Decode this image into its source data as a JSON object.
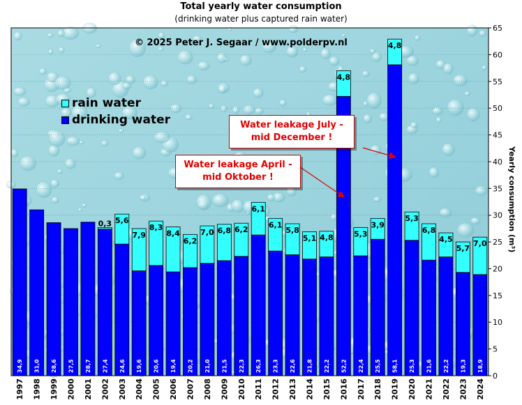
{
  "chart_data": {
    "type": "bar",
    "title": "Total yearly water consumption",
    "subtitle": "(drinking  water plus captured rain  water)",
    "ylabel": "Yearly consumption (m³)",
    "ylim": [
      0,
      65
    ],
    "yticks": [
      0,
      5,
      10,
      15,
      20,
      25,
      30,
      35,
      40,
      45,
      50,
      55,
      60,
      65
    ],
    "stacked": true,
    "legend": "top-left",
    "categories": [
      "1997",
      "1998",
      "1999",
      "2000",
      "2001",
      "2002",
      "2003",
      "2004",
      "2005",
      "2006",
      "2007",
      "2008",
      "2009",
      "2010",
      "2011",
      "2012",
      "2013",
      "2014",
      "2015",
      "2016",
      "2017",
      "2018",
      "2019",
      "2020",
      "2021",
      "2022",
      "2023",
      "2024"
    ],
    "series": [
      {
        "name": "drinking water",
        "color": "#0000ff",
        "values": [
          34.9,
          31.0,
          28.6,
          27.5,
          28.7,
          27.4,
          24.6,
          19.6,
          20.6,
          19.4,
          20.2,
          21.0,
          21.5,
          22.3,
          26.3,
          23.3,
          22.6,
          21.8,
          22.2,
          52.2,
          22.4,
          25.5,
          58.1,
          25.3,
          21.6,
          22.2,
          19.3,
          18.9
        ],
        "labels": [
          "34,9",
          "31,0",
          "28,6",
          "27,5",
          "28,7",
          "27,4",
          "24,6",
          "19,6",
          "20,6",
          "19,4",
          "20,2",
          "21,0",
          "21,5",
          "22,3",
          "26,3",
          "23,3",
          "22,6",
          "21,8",
          "22,2",
          "52,2",
          "22,4",
          "25,5",
          "58,1",
          "25,3",
          "21,6",
          "22,2",
          "19,3",
          "18,9"
        ]
      },
      {
        "name": "rain water",
        "color": "#33ffff",
        "values": [
          null,
          null,
          null,
          null,
          null,
          0.3,
          5.6,
          7.9,
          8.3,
          8.4,
          6.2,
          7.0,
          6.8,
          6.2,
          6.1,
          6.1,
          5.8,
          5.1,
          4.8,
          4.8,
          5.3,
          3.9,
          4.8,
          5.3,
          6.8,
          4.5,
          5.7,
          7.0
        ],
        "labels": [
          "",
          "",
          "",
          "",
          "",
          "0,3",
          "5,6",
          "7,9",
          "8,3",
          "8,4",
          "6,2",
          "7,0",
          "6,8",
          "6,2",
          "6,1",
          "6,1",
          "5,8",
          "5,1",
          "4,8",
          "4,8",
          "5,3",
          "3,9",
          "4,8",
          "5,3",
          "6,8",
          "4,5",
          "5,7",
          "7,0"
        ]
      }
    ],
    "annotations": [
      {
        "text_line1": "Water leakage July -",
        "text_line2": "mid December !",
        "category": "2019"
      },
      {
        "text_line1": "Water leakage April -",
        "text_line2": "mid Oktober !",
        "category": "2016"
      }
    ]
  },
  "copyright": "© 2025  Peter J.  Segaar / www.polderpv.nl",
  "legend": [
    {
      "label": "rain water",
      "color": "#33ffff"
    },
    {
      "label": "drinking water",
      "color": "#0000ff"
    }
  ]
}
